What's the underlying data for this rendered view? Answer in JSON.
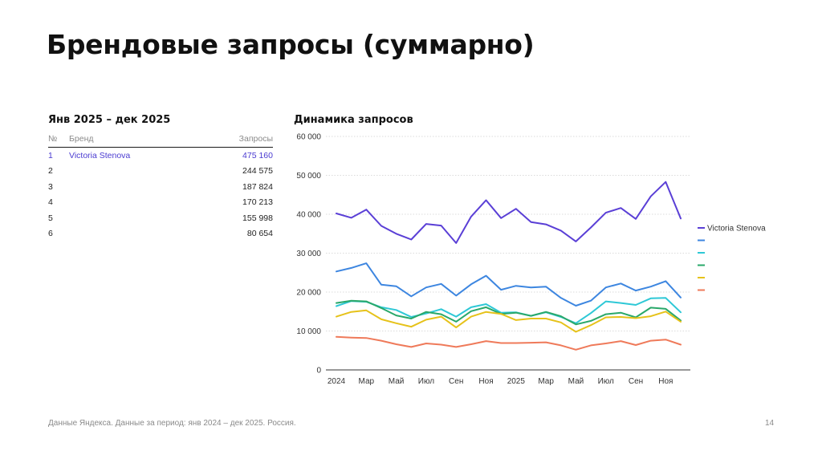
{
  "slide": {
    "title": "Брендовые запросы (суммарно)",
    "footer": "Данные Яндекса. Данные за период: янв 2024 – дек 2025. Россия.",
    "page_number": "14"
  },
  "brand_table": {
    "title": "Янв 2025 – дек 2025",
    "headers": {
      "num": "№",
      "brand": "Бренд",
      "queries": "Запросы"
    },
    "rows": [
      {
        "num": "1",
        "brand": "Victoria Stenova",
        "queries": "475 160"
      },
      {
        "num": "2",
        "brand": "",
        "queries": "244 575"
      },
      {
        "num": "3",
        "brand": "",
        "queries": "187 824"
      },
      {
        "num": "4",
        "brand": "",
        "queries": "170 213"
      },
      {
        "num": "5",
        "brand": "",
        "queries": "155 998"
      },
      {
        "num": "6",
        "brand": "",
        "queries": "80 654"
      }
    ],
    "highlight_color": "#4a3bd1"
  },
  "chart_data": {
    "type": "line",
    "title": "Динамика запросов",
    "x": [
      "2024-01",
      "2024-02",
      "2024-03",
      "2024-04",
      "2024-05",
      "2024-06",
      "2024-07",
      "2024-08",
      "2024-09",
      "2024-10",
      "2024-11",
      "2024-12",
      "2025-01",
      "2025-02",
      "2025-03",
      "2025-04",
      "2025-05",
      "2025-06",
      "2025-07",
      "2025-08",
      "2025-09",
      "2025-10",
      "2025-11",
      "2025-12"
    ],
    "x_tick_labels": [
      "2024",
      "Мар",
      "Май",
      "Июл",
      "Сен",
      "Ноя",
      "2025",
      "Мар",
      "Май",
      "Июл",
      "Сен",
      "Ноя"
    ],
    "x_tick_indices": [
      0,
      2,
      4,
      6,
      8,
      10,
      12,
      14,
      16,
      18,
      20,
      22
    ],
    "y_ticks": [
      0,
      10000,
      20000,
      30000,
      40000,
      50000,
      60000
    ],
    "y_tick_labels": [
      "0",
      "10 000",
      "20 000",
      "30 000",
      "40 000",
      "50 000",
      "60 000"
    ],
    "ylim": [
      0,
      60000
    ],
    "grid": "horizontal dotted",
    "legend_position": "right",
    "series": [
      {
        "name": "Victoria Stenova",
        "color": "#5a3fd6",
        "values": [
          40200,
          39100,
          41200,
          37000,
          35000,
          33500,
          37500,
          37100,
          32600,
          39400,
          43600,
          39000,
          41400,
          38000,
          37400,
          35800,
          33000,
          36600,
          40400,
          41600,
          38800,
          44600,
          48300,
          38900
        ]
      },
      {
        "name": "",
        "color": "#3d86e0",
        "values": [
          25300,
          26200,
          27400,
          21900,
          21500,
          18900,
          21200,
          22100,
          19100,
          22000,
          24200,
          20600,
          21600,
          21200,
          21400,
          18500,
          16500,
          17800,
          21200,
          22200,
          20400,
          21400,
          22800,
          18600
        ]
      },
      {
        "name": "",
        "color": "#2ec8d6",
        "values": [
          16400,
          17700,
          17500,
          16100,
          15400,
          13600,
          14500,
          15600,
          13700,
          16100,
          16900,
          14700,
          14800,
          13900,
          14800,
          13600,
          12000,
          14600,
          17600,
          17200,
          16700,
          18400,
          18500,
          14800
        ]
      },
      {
        "name": "",
        "color": "#2aa86a",
        "values": [
          17200,
          17800,
          17600,
          15900,
          14000,
          13200,
          14900,
          14300,
          12400,
          15100,
          16100,
          14400,
          14700,
          13900,
          14900,
          13800,
          11700,
          12600,
          14300,
          14700,
          13500,
          16000,
          15700,
          12700
        ]
      },
      {
        "name": "",
        "color": "#e6c21a",
        "values": [
          13700,
          14900,
          15300,
          13000,
          12000,
          11100,
          12900,
          13700,
          10900,
          13700,
          14900,
          14400,
          12800,
          13200,
          13200,
          12200,
          9800,
          11500,
          13500,
          13600,
          13300,
          13800,
          15000,
          12400
        ]
      },
      {
        "name": "",
        "color": "#ef7a5a",
        "values": [
          8500,
          8300,
          8200,
          7500,
          6600,
          5900,
          6800,
          6500,
          5900,
          6600,
          7400,
          6900,
          6900,
          7000,
          7100,
          6300,
          5200,
          6300,
          6800,
          7400,
          6400,
          7500,
          7800,
          6500
        ]
      }
    ]
  }
}
